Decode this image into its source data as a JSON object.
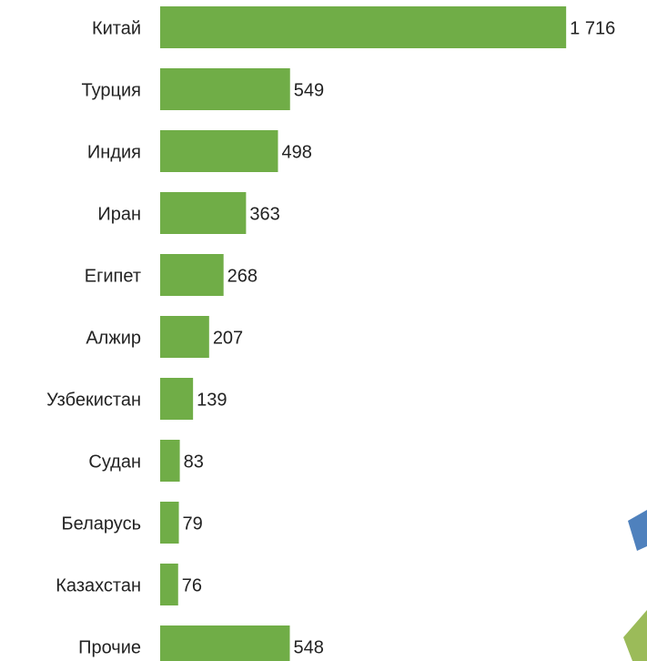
{
  "chart_data": {
    "type": "bar",
    "orientation": "horizontal",
    "categories": [
      "Китай",
      "Турция",
      "Индия",
      "Иран",
      "Египет",
      "Алжир",
      "Узбекистан",
      "Судан",
      "Беларусь",
      "Казахстан",
      "Прочие"
    ],
    "values": [
      1716,
      549,
      498,
      363,
      268,
      207,
      139,
      83,
      79,
      76,
      548
    ],
    "value_labels": [
      "1 716",
      "549",
      "498",
      "363",
      "268",
      "207",
      "139",
      "83",
      "79",
      "76",
      "548"
    ],
    "color": "#70ad47"
  }
}
